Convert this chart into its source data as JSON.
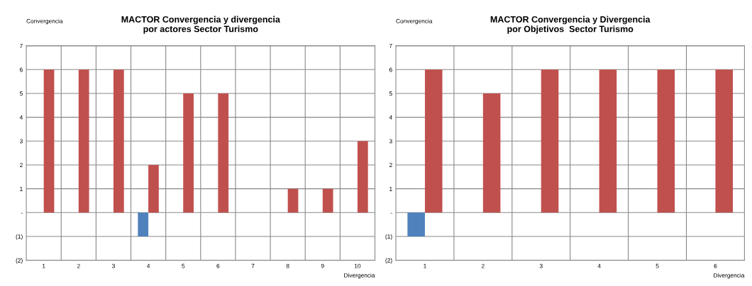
{
  "chart_data": [
    {
      "type": "bar",
      "title": "MACTOR Convergencia y divergencia\npor actores Sector Turismo",
      "ylabel": "Convergencia",
      "xlabel": "Divergencia",
      "categories": [
        "1",
        "2",
        "3",
        "4",
        "5",
        "6",
        "7",
        "8",
        "9",
        "10"
      ],
      "series": [
        {
          "color": "#4f81bd",
          "values": [
            0,
            0,
            0,
            -1,
            0,
            0,
            0,
            0,
            0,
            0
          ]
        },
        {
          "color": "#c0504d",
          "values": [
            6,
            6,
            6,
            2,
            5,
            5,
            0,
            1,
            1,
            3
          ]
        }
      ],
      "ylim": [
        -2,
        7
      ],
      "yticks": [
        {
          "value": -2,
          "label": "(2)"
        },
        {
          "value": -1,
          "label": "(1)"
        },
        {
          "value": 0,
          "label": "-"
        },
        1,
        2,
        3,
        4,
        5,
        6,
        7
      ],
      "grid": true
    },
    {
      "type": "bar",
      "title": "MACTOR Convergencia y Divergencia\npor Objetivos  Sector Turismo",
      "ylabel": "Convergencia",
      "xlabel": "Divergencia",
      "categories": [
        "1",
        "2",
        "3",
        "4",
        "5",
        "6"
      ],
      "series": [
        {
          "color": "#4f81bd",
          "values": [
            -1,
            0,
            0,
            0,
            0,
            0
          ]
        },
        {
          "color": "#c0504d",
          "values": [
            6,
            5,
            6,
            6,
            6,
            6
          ]
        }
      ],
      "ylim": [
        -2,
        7
      ],
      "yticks": [
        {
          "value": -2,
          "label": "(2)"
        },
        {
          "value": -1,
          "label": "(1)"
        },
        {
          "value": 0,
          "label": "-"
        },
        1,
        2,
        3,
        4,
        5,
        6,
        7
      ],
      "grid": true
    }
  ]
}
